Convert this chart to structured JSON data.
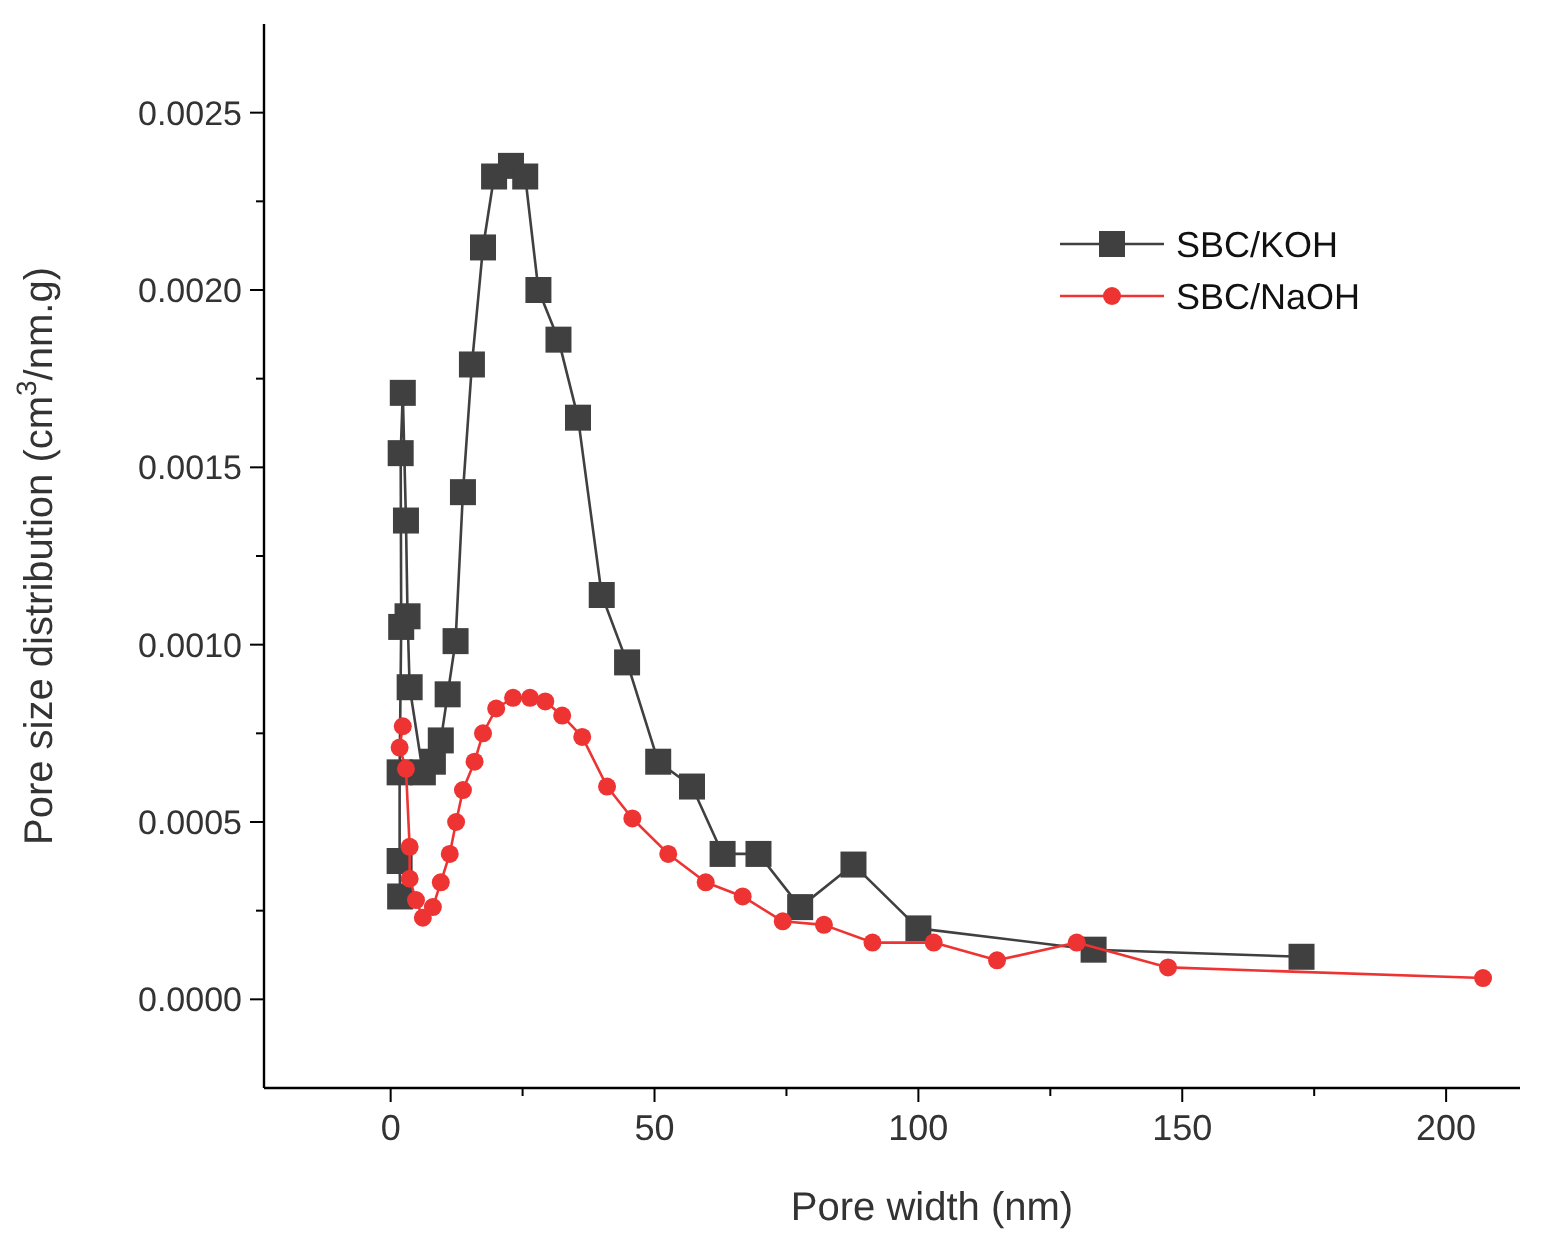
{
  "chart_data": {
    "type": "line",
    "xlabel": "Pore width (nm)",
    "ylabel": "Pore size distribution (cm$^{3}$/nm.g)",
    "xlim": [
      -24,
      214
    ],
    "ylim": [
      -0.00025,
      0.00275
    ],
    "xticks": [
      0,
      {
        "value": 25,
        "label": null
      },
      50,
      {
        "value": 75,
        "label": null
      },
      100,
      {
        "value": 125,
        "label": null
      },
      150,
      {
        "value": 175,
        "label": null
      },
      200
    ],
    "yticks": [
      "0.0000",
      {
        "value": 0.00025,
        "label": null
      },
      {
        "value": 0.0005,
        "label": "0.0005"
      },
      {
        "value": 0.00075,
        "label": null
      },
      {
        "value": 0.001,
        "label": "0.0010"
      },
      {
        "value": 0.00125,
        "label": null
      },
      {
        "value": 0.0015,
        "label": "0.0015"
      },
      {
        "value": 0.00175,
        "label": null
      },
      {
        "value": 0.002,
        "label": "0.0020"
      },
      {
        "value": 0.00225,
        "label": null
      },
      {
        "value": 0.0025,
        "label": "0.0025"
      }
    ],
    "legend": "top right",
    "grid": false,
    "series": [
      {
        "name": "SBC/KOH",
        "color": "#404040",
        "marker": "square",
        "x": [
          1.8,
          1.7,
          1.7,
          2.0,
          1.9,
          2.3,
          2.9,
          3.2,
          3.6,
          6.1,
          8.0,
          9.5,
          10.8,
          12.3,
          13.7,
          15.4,
          17.5,
          19.6,
          22.8,
          25.5,
          28.0,
          31.8,
          35.5,
          40.0,
          44.8,
          50.7,
          57.1,
          62.9,
          69.7,
          77.6,
          87.7,
          100.0,
          133.2,
          172.6
        ],
        "values": [
          0.00029,
          0.00039,
          0.00064,
          0.00105,
          0.00154,
          0.00171,
          0.00135,
          0.00108,
          0.00088,
          0.00064,
          0.00067,
          0.00073,
          0.00086,
          0.00101,
          0.00143,
          0.00179,
          0.00212,
          0.00232,
          0.00235,
          0.00232,
          0.002,
          0.00186,
          0.00164,
          0.00114,
          0.00095,
          0.00067,
          0.0006,
          0.00041,
          0.00041,
          0.00026,
          0.00038,
          0.0002,
          0.00014,
          0.00012
        ]
      },
      {
        "name": "SBC/NaOH",
        "color": "#ee3333",
        "marker": "circle",
        "x": [
          2.3,
          1.7,
          2.9,
          3.6,
          3.6,
          4.8,
          6.1,
          8.0,
          9.5,
          11.2,
          12.4,
          13.7,
          15.9,
          17.5,
          20.0,
          23.2,
          26.4,
          29.3,
          32.5,
          36.3,
          41.0,
          45.8,
          52.6,
          59.7,
          66.7,
          74.3,
          82.1,
          91.3,
          102.9,
          114.9,
          130.0,
          147.3,
          207.0
        ],
        "values": [
          0.00077,
          0.00071,
          0.00065,
          0.00043,
          0.00034,
          0.00028,
          0.00023,
          0.00026,
          0.00033,
          0.00041,
          0.0005,
          0.00059,
          0.00067,
          0.00075,
          0.00082,
          0.00085,
          0.00085,
          0.00084,
          0.0008,
          0.00074,
          0.0006,
          0.00051,
          0.00041,
          0.00033,
          0.00029,
          0.00022,
          0.00021,
          0.00016,
          0.00016,
          0.00011,
          0.00016,
          9e-05,
          6e-05
        ]
      }
    ]
  }
}
